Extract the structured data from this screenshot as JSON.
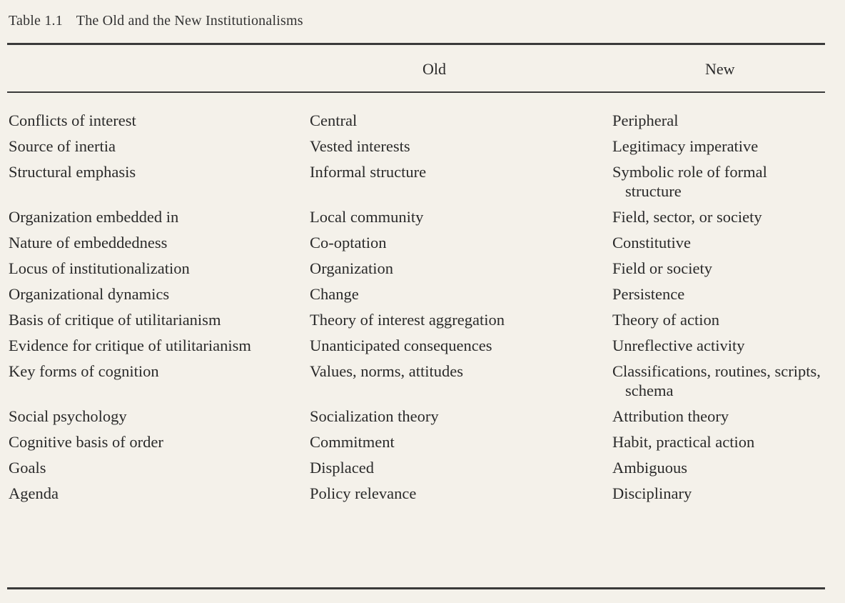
{
  "table": {
    "number": "Table 1.1",
    "title": "The Old and the New Institutionalisms",
    "headers": [
      "",
      "Old",
      "New"
    ],
    "rows": [
      [
        "Conflicts of interest",
        "Central",
        "Peripheral"
      ],
      [
        "Source of inertia",
        "Vested interests",
        "Legitimacy imperative"
      ],
      [
        "Structural emphasis",
        "Informal structure",
        "Symbolic role of formal structure"
      ],
      [
        "Organization embedded in",
        "Local community",
        "Field, sector, or society"
      ],
      [
        "Nature of embeddedness",
        "Co-optation",
        "Constitutive"
      ],
      [
        "Locus of institutionalization",
        "Organization",
        "Field or society"
      ],
      [
        "Organizational dynamics",
        "Change",
        "Persistence"
      ],
      [
        "Basis of critique of utilitarianism",
        "Theory of interest aggregation",
        "Theory of action"
      ],
      [
        "Evidence for critique of utilitarianism",
        "Unanticipated consequences",
        "Unreflective activity"
      ],
      [
        "Key forms of cognition",
        "Values, norms, attitudes",
        "Classifications, routines, scripts, schema"
      ],
      [
        "Social psychology",
        "Socialization theory",
        "Attribution theory"
      ],
      [
        "Cognitive basis of order",
        "Commitment",
        "Habit, practical action"
      ],
      [
        "Goals",
        "Displaced",
        "Ambiguous"
      ],
      [
        "Agenda",
        "Policy relevance",
        "Disciplinary"
      ]
    ]
  }
}
